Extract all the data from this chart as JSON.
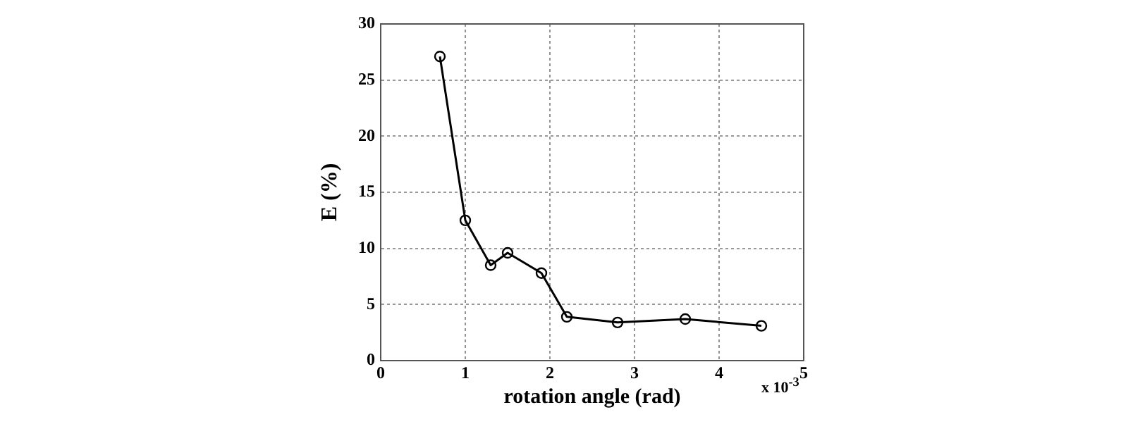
{
  "chart_data": {
    "type": "line",
    "xlabel": "rotation angle (rad)",
    "ylabel": "E (%)",
    "annotations": [
      "x 10$^{-3}$"
    ],
    "x": [
      0.7,
      1.0,
      1.3,
      1.5,
      1.9,
      2.2,
      2.8,
      3.6,
      4.5
    ],
    "series": [
      {
        "color": "#000000",
        "values": [
          27.1,
          12.5,
          8.5,
          9.6,
          7.8,
          3.9,
          3.4,
          3.7,
          3.1
        ]
      }
    ],
    "xlim": [
      0,
      5
    ],
    "xticks": [
      0,
      1,
      2,
      3,
      4,
      5
    ],
    "ylim": [
      0,
      30
    ],
    "yticks": [
      0,
      5,
      10,
      15,
      20,
      25,
      30
    ],
    "grid": true,
    "legend": false,
    "marker": "circle",
    "line_style": "solid"
  }
}
